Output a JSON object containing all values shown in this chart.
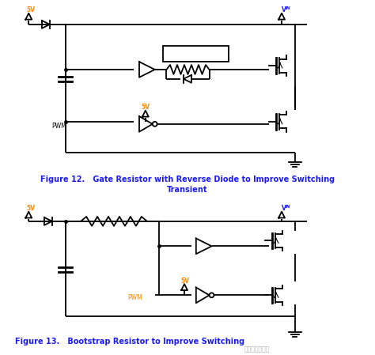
{
  "fig_width": 4.74,
  "fig_height": 4.49,
  "dpi": 100,
  "bg_color": "#ffffff",
  "line_color": "#000000",
  "label_color": "#1a1aff",
  "caption_color": "#1a1aff",
  "fig12_caption_l1": "Figure 12.   Gate Resistor with Reverse Diode to Improve Switching",
  "fig12_caption_l2": "Transient",
  "fig13_caption": "Figure 13.   Bootstrap Resistor to Improve Switching",
  "watermark": "硬件电路工程师",
  "pwm_color": "#ff8800",
  "5v_color": "#ff8800"
}
